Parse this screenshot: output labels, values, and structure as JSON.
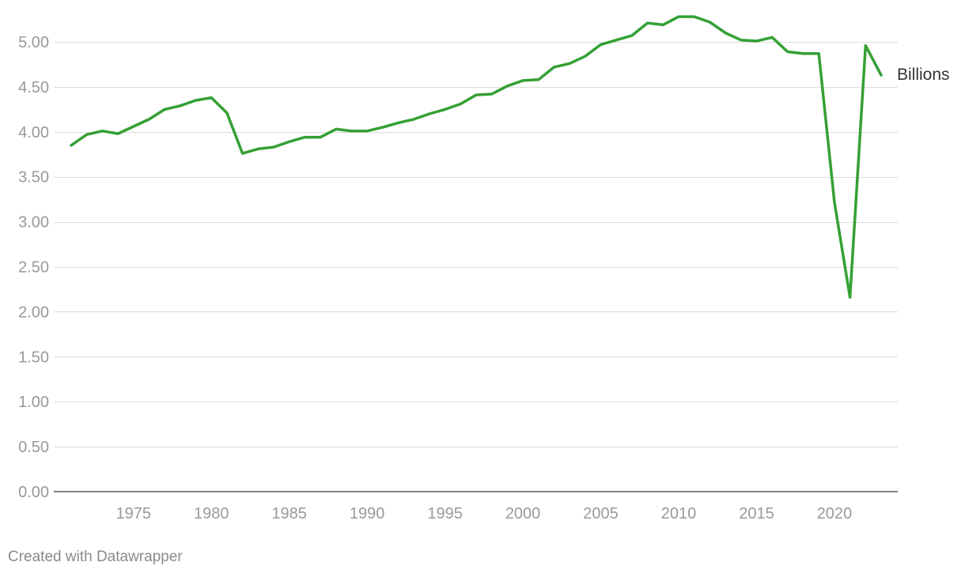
{
  "chart_data": {
    "type": "line",
    "title": "",
    "xlabel": "",
    "ylabel": "",
    "xlim": [
      1971,
      2023
    ],
    "ylim": [
      0,
      5
    ],
    "y_ticks": [
      0,
      0.5,
      1,
      1.5,
      2,
      2.5,
      3,
      3.5,
      4,
      4.5,
      5
    ],
    "y_tick_labels": [
      "0.00",
      "0.50",
      "1.00",
      "1.50",
      "2.00",
      "2.50",
      "3.00",
      "3.50",
      "4.00",
      "4.50",
      "5.00"
    ],
    "x_ticks": [
      1975,
      1980,
      1985,
      1990,
      1995,
      2000,
      2005,
      2010,
      2015,
      2020
    ],
    "x_tick_labels": [
      "1975",
      "1980",
      "1985",
      "1990",
      "1995",
      "2000",
      "2005",
      "2010",
      "2015",
      "2020"
    ],
    "grid": true,
    "x": [
      1971,
      1972,
      1973,
      1974,
      1975,
      1976,
      1977,
      1978,
      1979,
      1980,
      1981,
      1982,
      1983,
      1984,
      1985,
      1986,
      1987,
      1988,
      1989,
      1990,
      1991,
      1992,
      1993,
      1994,
      1995,
      1996,
      1997,
      1998,
      1999,
      2000,
      2001,
      2002,
      2003,
      2004,
      2005,
      2006,
      2007,
      2008,
      2009,
      2010,
      2011,
      2012,
      2013,
      2014,
      2015,
      2016,
      2017,
      2018,
      2019,
      2020,
      2021,
      2022,
      2023
    ],
    "series": [
      {
        "name": "Billions",
        "color": "#34a034",
        "values": [
          3.85,
          3.97,
          4.01,
          3.98,
          4.06,
          4.14,
          4.25,
          4.29,
          4.35,
          4.38,
          4.21,
          3.76,
          3.81,
          3.83,
          3.89,
          3.94,
          3.94,
          4.03,
          4.01,
          4.01,
          4.05,
          4.1,
          4.14,
          4.2,
          4.25,
          4.31,
          4.41,
          4.42,
          4.51,
          4.57,
          4.58,
          4.72,
          4.76,
          4.84,
          4.97,
          5.02,
          5.07,
          5.21,
          5.19,
          5.28,
          5.28,
          5.22,
          5.1,
          5.02,
          5.01,
          5.05,
          4.89,
          4.87,
          4.87,
          3.22,
          2.16,
          4.96,
          4.63
        ]
      }
    ]
  },
  "footer": {
    "credit": "Created with Datawrapper"
  }
}
